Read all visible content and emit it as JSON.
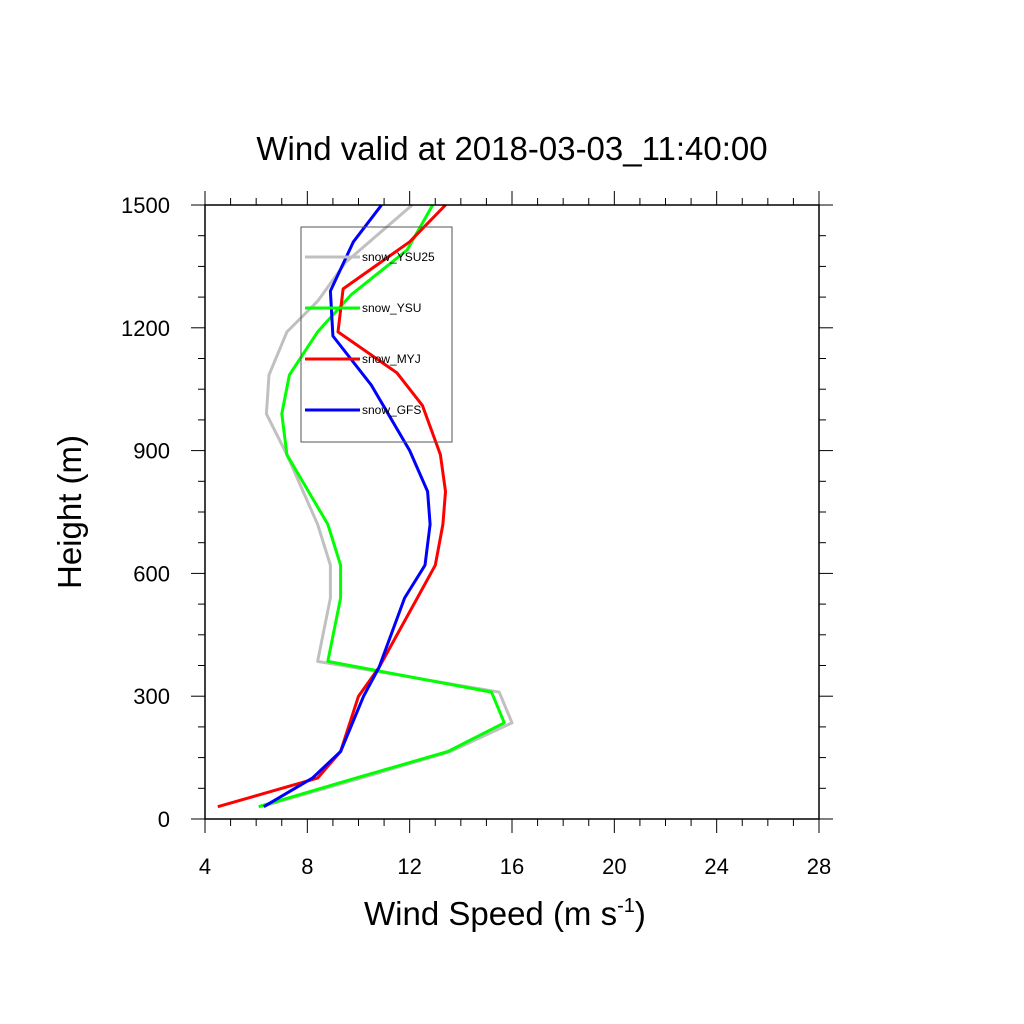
{
  "chart_data": {
    "type": "line",
    "title": "Wind valid at 2018-03-03_11:40:00",
    "xlabel": "Wind Speed (m s",
    "xlabel_sup": "-1",
    "xlabel_close": ")",
    "ylabel": "Height (m)",
    "xlim": [
      4,
      28
    ],
    "ylim": [
      0,
      1500
    ],
    "xticks": [
      4,
      8,
      12,
      16,
      20,
      24,
      28
    ],
    "yticks": [
      0,
      300,
      600,
      900,
      1200,
      1500
    ],
    "grid": false,
    "legend_position": "upper-left",
    "series": [
      {
        "name": "snow_YSU25",
        "color": "#c0c0c0",
        "points": [
          [
            6.2,
            30
          ],
          [
            10.1,
            100
          ],
          [
            13.6,
            165
          ],
          [
            16.0,
            235
          ],
          [
            15.5,
            310
          ],
          [
            8.4,
            385
          ],
          [
            8.9,
            540
          ],
          [
            8.9,
            620
          ],
          [
            8.4,
            720
          ],
          [
            7.2,
            890
          ],
          [
            6.4,
            990
          ],
          [
            6.5,
            1085
          ],
          [
            7.2,
            1190
          ],
          [
            8.4,
            1265
          ],
          [
            9.5,
            1360
          ],
          [
            12.1,
            1500
          ]
        ]
      },
      {
        "name": "snow_YSU",
        "color": "#00ff00",
        "points": [
          [
            6.1,
            30
          ],
          [
            9.9,
            100
          ],
          [
            13.5,
            165
          ],
          [
            15.7,
            235
          ],
          [
            15.2,
            310
          ],
          [
            8.8,
            385
          ],
          [
            9.3,
            540
          ],
          [
            9.3,
            620
          ],
          [
            8.8,
            720
          ],
          [
            7.2,
            890
          ],
          [
            7.0,
            990
          ],
          [
            7.3,
            1085
          ],
          [
            8.4,
            1190
          ],
          [
            9.7,
            1280
          ],
          [
            11.9,
            1390
          ],
          [
            12.9,
            1500
          ]
        ]
      },
      {
        "name": "snow_MYJ",
        "color": "#ff0000",
        "points": [
          [
            4.5,
            30
          ],
          [
            8.4,
            100
          ],
          [
            9.3,
            165
          ],
          [
            10.0,
            300
          ],
          [
            10.8,
            370
          ],
          [
            12.3,
            540
          ],
          [
            13.0,
            620
          ],
          [
            13.3,
            720
          ],
          [
            13.4,
            800
          ],
          [
            13.2,
            890
          ],
          [
            12.5,
            1010
          ],
          [
            11.5,
            1090
          ],
          [
            9.2,
            1190
          ],
          [
            9.4,
            1295
          ],
          [
            12.0,
            1410
          ],
          [
            13.4,
            1500
          ]
        ]
      },
      {
        "name": "snow_GFS",
        "color": "#0000ff",
        "points": [
          [
            6.3,
            30
          ],
          [
            8.2,
            100
          ],
          [
            9.3,
            165
          ],
          [
            10.2,
            300
          ],
          [
            10.8,
            370
          ],
          [
            11.8,
            540
          ],
          [
            12.6,
            620
          ],
          [
            12.8,
            720
          ],
          [
            12.7,
            800
          ],
          [
            12.0,
            900
          ],
          [
            10.5,
            1060
          ],
          [
            9.0,
            1180
          ],
          [
            8.9,
            1290
          ],
          [
            9.8,
            1410
          ],
          [
            10.9,
            1500
          ]
        ]
      }
    ]
  }
}
